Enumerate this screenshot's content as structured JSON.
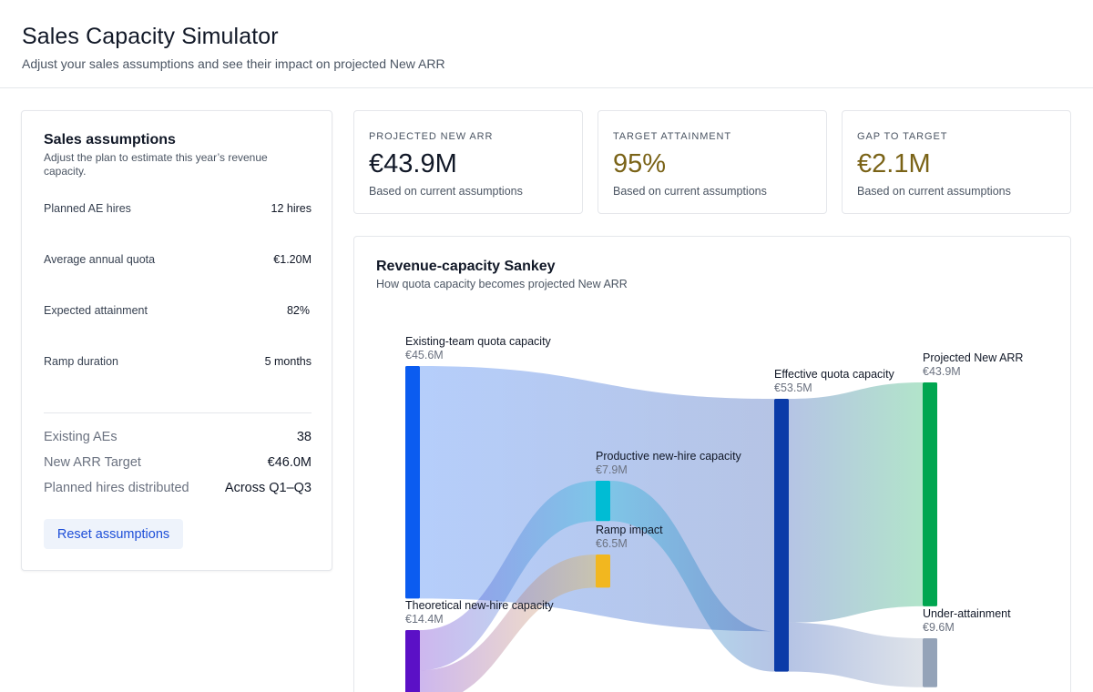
{
  "header": {
    "title": "Sales Capacity Simulator",
    "subtitle": "Adjust your sales assumptions and see their impact on projected New ARR"
  },
  "assumptions": {
    "title": "Sales assumptions",
    "description": "Adjust the plan to estimate this year’s revenue capacity.",
    "inputs": [
      {
        "label": "Planned AE hires",
        "value": "12 hires"
      },
      {
        "label": "Average annual quota",
        "value": "€1.20M"
      },
      {
        "label": "Expected attainment",
        "value": "82%"
      },
      {
        "label": "Ramp duration",
        "value": "5 months"
      }
    ],
    "facts": [
      {
        "label": "Existing AEs",
        "value": "38"
      },
      {
        "label": "New ARR Target",
        "value": "€46.0M"
      },
      {
        "label": "Planned hires distributed",
        "value": "Across Q1–Q3"
      }
    ],
    "reset_label": "Reset assumptions"
  },
  "kpis": [
    {
      "label": "PROJECTED NEW ARR",
      "value": "€43.9M",
      "note": "Based on current assumptions",
      "color": "#111827"
    },
    {
      "label": "TARGET ATTAINMENT",
      "value": "95%",
      "note": "Based on current assumptions",
      "color": "#7a6317"
    },
    {
      "label": "GAP TO TARGET",
      "value": "€2.1M",
      "note": "Based on current assumptions",
      "color": "#7a6317"
    }
  ],
  "sankey": {
    "title": "Revenue-capacity Sankey",
    "subtitle": "How quota capacity becomes projected New ARR",
    "nodes": [
      {
        "id": "existing",
        "label": "Existing-team quota capacity",
        "value_label": "€45.6M",
        "value": 45.6,
        "color": "#0b5cf0"
      },
      {
        "id": "theoretical",
        "label": "Theoretical new-hire capacity",
        "value_label": "€14.4M",
        "value": 14.4,
        "color": "#5b10c6"
      },
      {
        "id": "productive",
        "label": "Productive new-hire capacity",
        "value_label": "€7.9M",
        "value": 7.9,
        "color": "#00bcd4"
      },
      {
        "id": "ramp",
        "label": "Ramp impact",
        "value_label": "€6.5M",
        "value": 6.5,
        "color": "#f2b71f"
      },
      {
        "id": "effective",
        "label": "Effective quota capacity",
        "value_label": "€53.5M",
        "value": 53.5,
        "color": "#0b3ba8"
      },
      {
        "id": "projected",
        "label": "Projected New ARR",
        "value_label": "€43.9M",
        "value": 43.9,
        "color": "#00a650"
      },
      {
        "id": "under",
        "label": "Under-attainment",
        "value_label": "€9.6M",
        "value": 9.6,
        "color": "#94a3b8"
      }
    ],
    "links": [
      {
        "source": "existing",
        "target": "effective",
        "value": 45.6
      },
      {
        "source": "theoretical",
        "target": "productive",
        "value": 7.9
      },
      {
        "source": "theoretical",
        "target": "ramp",
        "value": 6.5
      },
      {
        "source": "productive",
        "target": "effective",
        "value": 7.9
      },
      {
        "source": "effective",
        "target": "projected",
        "value": 43.9
      },
      {
        "source": "effective",
        "target": "under",
        "value": 9.6
      }
    ]
  }
}
